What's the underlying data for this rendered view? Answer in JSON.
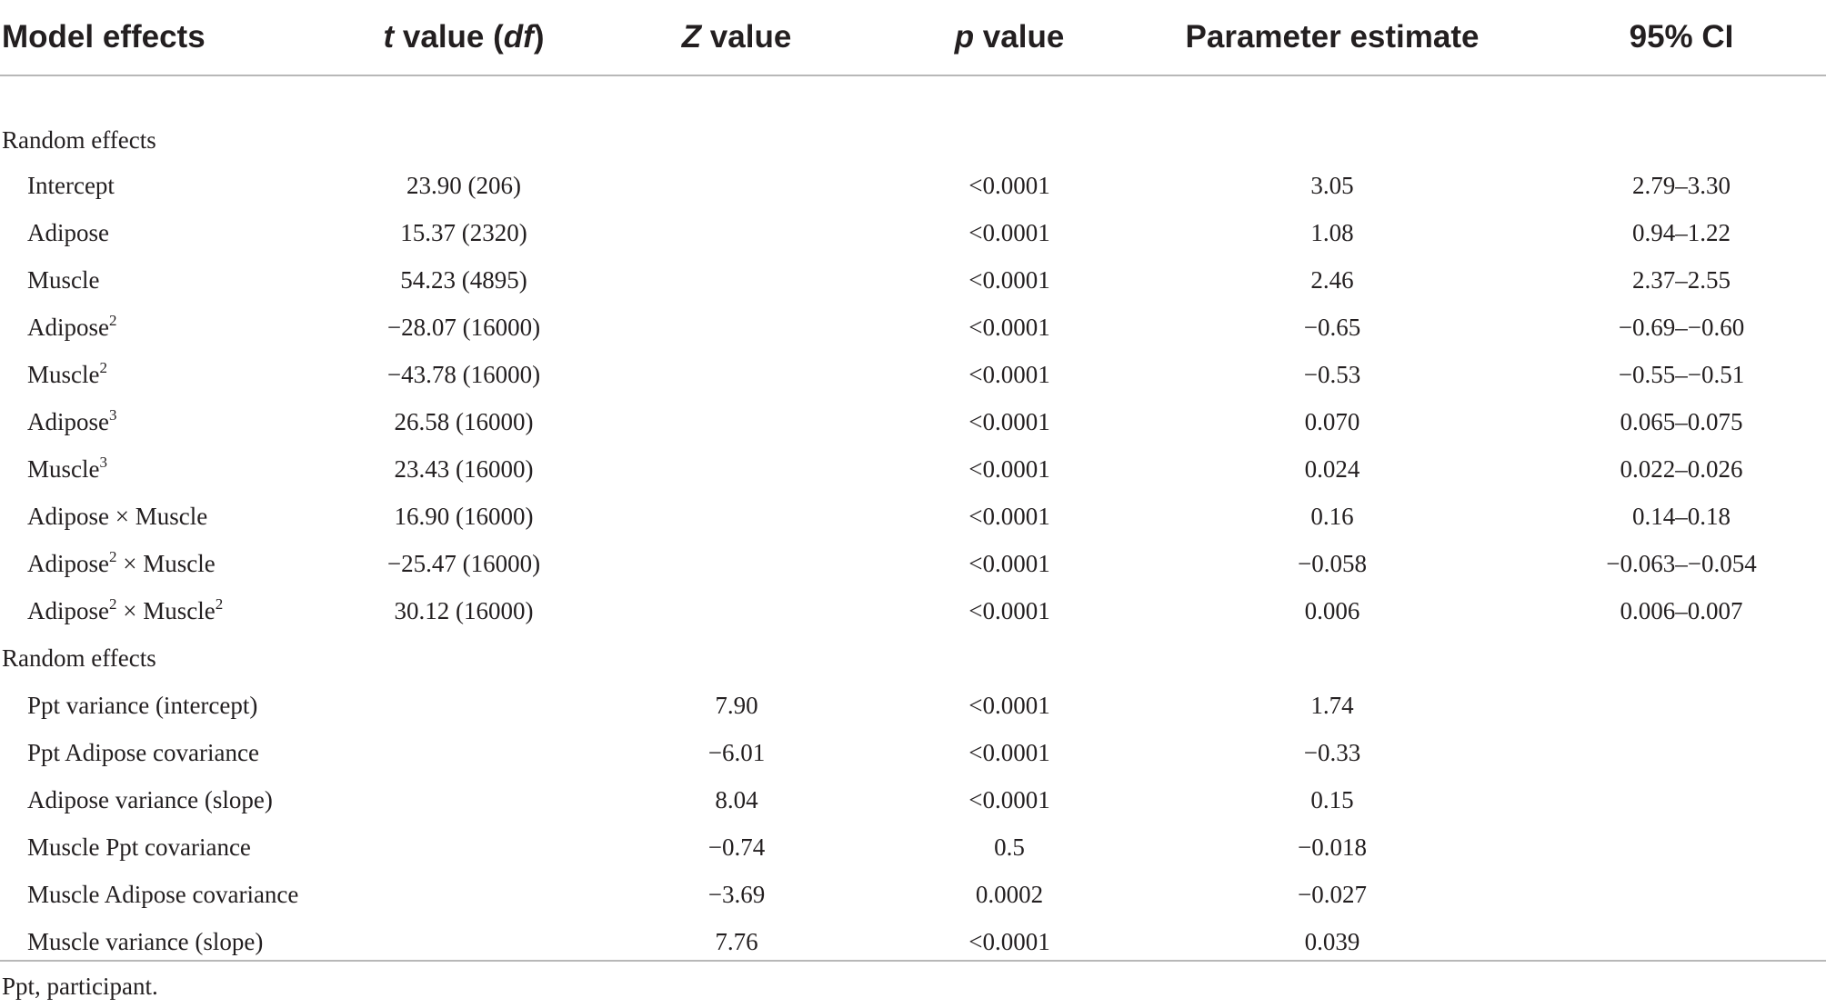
{
  "header": {
    "model_effects": "Model effects",
    "t_italic": "t",
    "t_mid": " value (",
    "df_italic": "df",
    "t_close": ")",
    "z_italic": "Z",
    "z_rest": " value",
    "p_italic": "p",
    "p_rest": " value",
    "parameter_estimate": "Parameter estimate",
    "ci": "95% CI"
  },
  "sections": [
    {
      "title": "Random effects",
      "rows": [
        {
          "label": "Intercept",
          "t": "23.90 (206)",
          "z": "",
          "p": "<0.0001",
          "est": "3.05",
          "ci": "2.79–3.30"
        },
        {
          "label": "Adipose",
          "t": "15.37 (2320)",
          "z": "",
          "p": "<0.0001",
          "est": "1.08",
          "ci": "0.94–1.22"
        },
        {
          "label": "Muscle",
          "t": "54.23 (4895)",
          "z": "",
          "p": "<0.0001",
          "est": "2.46",
          "ci": "2.37–2.55"
        },
        {
          "label_a": "Adipose",
          "sup_a": "2",
          "t": "−28.07 (16000)",
          "z": "",
          "p": "<0.0001",
          "est": "−0.65",
          "ci": "−0.69–−0.60"
        },
        {
          "label_a": "Muscle",
          "sup_a": "2",
          "t": "−43.78 (16000)",
          "z": "",
          "p": "<0.0001",
          "est": "−0.53",
          "ci": "−0.55–−0.51"
        },
        {
          "label_a": "Adipose",
          "sup_a": "3",
          "t": "26.58 (16000)",
          "z": "",
          "p": "<0.0001",
          "est": "0.070",
          "ci": "0.065–0.075"
        },
        {
          "label_a": "Muscle",
          "sup_a": "3",
          "t": "23.43 (16000)",
          "z": "",
          "p": "<0.0001",
          "est": "0.024",
          "ci": "0.022–0.026"
        },
        {
          "label": "Adipose × Muscle",
          "t": "16.90 (16000)",
          "z": "",
          "p": "<0.0001",
          "est": "0.16",
          "ci": "0.14–0.18"
        },
        {
          "label_a": "Adipose",
          "sup_a": "2",
          "label_b": " × Muscle",
          "t": "−25.47 (16000)",
          "z": "",
          "p": "<0.0001",
          "est": "−0.058",
          "ci": "−0.063–−0.054"
        },
        {
          "label_a": "Adipose",
          "sup_a": "2",
          "label_b": " × Muscle",
          "sup_b": "2",
          "t": "30.12 (16000)",
          "z": "",
          "p": "<0.0001",
          "est": "0.006",
          "ci": "0.006–0.007"
        }
      ]
    },
    {
      "title": "Random effects",
      "rows": [
        {
          "label": "Ppt variance (intercept)",
          "t": "",
          "z": "7.90",
          "p": "<0.0001",
          "est": "1.74",
          "ci": ""
        },
        {
          "label": "Ppt Adipose covariance",
          "t": "",
          "z": "−6.01",
          "p": "<0.0001",
          "est": "−0.33",
          "ci": ""
        },
        {
          "label": "Adipose variance (slope)",
          "t": "",
          "z": "8.04",
          "p": "<0.0001",
          "est": "0.15",
          "ci": ""
        },
        {
          "label": "Muscle Ppt covariance",
          "t": "",
          "z": "−0.74",
          "p": "0.5",
          "est": "−0.018",
          "ci": ""
        },
        {
          "label": "Muscle Adipose covariance",
          "t": "",
          "z": "−3.69",
          "p": "0.0002",
          "est": "−0.027",
          "ci": ""
        },
        {
          "label": "Muscle variance (slope)",
          "t": "",
          "z": "7.76",
          "p": "<0.0001",
          "est": "0.039",
          "ci": ""
        }
      ]
    }
  ],
  "footnote": "Ppt, participant."
}
